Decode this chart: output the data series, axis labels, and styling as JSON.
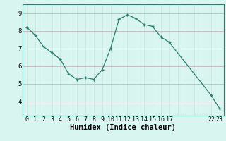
{
  "x_values": [
    0,
    1,
    2,
    3,
    4,
    5,
    6,
    7,
    8,
    9,
    10,
    11,
    12,
    13,
    14,
    15,
    16,
    17,
    22,
    23
  ],
  "y_values": [
    8.2,
    7.75,
    7.1,
    6.75,
    6.4,
    5.55,
    5.25,
    5.35,
    5.25,
    5.8,
    7.0,
    8.65,
    8.9,
    8.7,
    8.35,
    8.25,
    7.65,
    7.35,
    4.35,
    3.6
  ],
  "line_color": "#2e7d6e",
  "marker_color": "#2e7d6e",
  "bg_color": "#d8f5f0",
  "grid_color_v": "#c8e8e0",
  "grid_color_h": "#c8b8c0",
  "xlabel": "Humidex (Indice chaleur)",
  "ylim": [
    3.2,
    9.5
  ],
  "xlim": [
    -0.5,
    23.5
  ],
  "yticks": [
    4,
    5,
    6,
    7,
    8,
    9
  ],
  "xtick_positions": [
    0,
    1,
    2,
    3,
    4,
    5,
    6,
    7,
    8,
    9,
    10,
    11,
    12,
    13,
    14,
    15,
    16,
    17,
    22,
    23
  ],
  "xtick_labels": [
    "0",
    "1",
    "2",
    "3",
    "4",
    "5",
    "6",
    "7",
    "8",
    "9",
    "10",
    "11",
    "12",
    "13",
    "14",
    "15",
    "16",
    "17",
    "22",
    "23"
  ],
  "grid_xtick_positions": [
    0,
    1,
    2,
    3,
    4,
    5,
    6,
    7,
    8,
    9,
    10,
    11,
    12,
    13,
    14,
    15,
    16,
    17,
    18,
    19,
    20,
    21,
    22,
    23
  ]
}
